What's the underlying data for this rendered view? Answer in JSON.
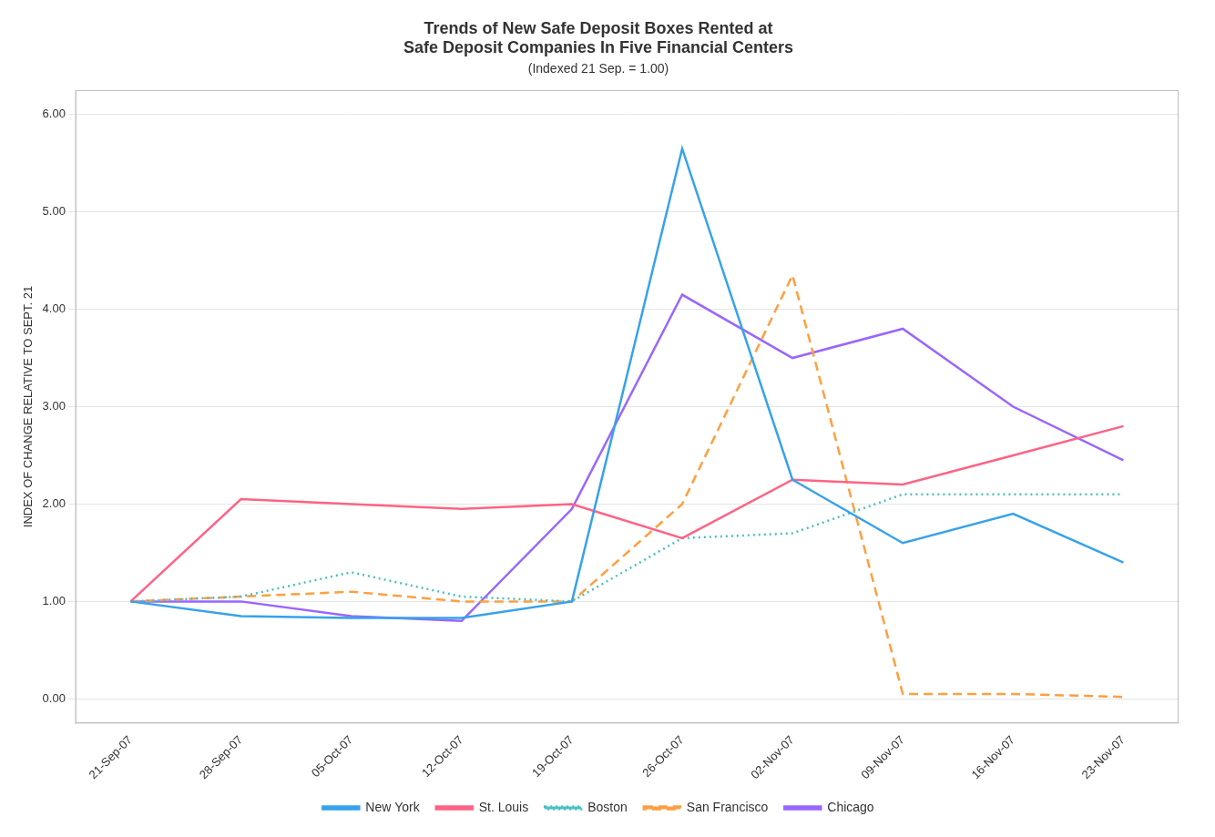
{
  "chart_data": {
    "type": "line",
    "title": [
      "Trends of New Safe Deposit Boxes Rented at",
      "Safe Deposit Companies In Five Financial Centers"
    ],
    "subtitle": "(Indexed 21 Sep. = 1.00)",
    "ylabel": "INDEX OF CHANGE RELATIVE TO SEPT. 21",
    "categories": [
      "21-Sep-07",
      "28-Sep-07",
      "05-Oct-07",
      "12-Oct-07",
      "19-Oct-07",
      "26-Oct-07",
      "02-Nov-07",
      "09-Nov-07",
      "16-Nov-07",
      "23-Nov-07"
    ],
    "series": [
      {
        "name": "New York",
        "line_style": "solid",
        "values": [
          1.0,
          0.85,
          0.83,
          0.83,
          1.0,
          5.65,
          2.25,
          1.6,
          1.9,
          1.4
        ]
      },
      {
        "name": "St. Louis",
        "line_style": "solid",
        "values": [
          1.0,
          2.05,
          2.0,
          1.95,
          2.0,
          1.65,
          2.25,
          2.2,
          2.5,
          2.8
        ]
      },
      {
        "name": "Boston",
        "line_style": "dotted",
        "values": [
          1.0,
          1.05,
          1.3,
          1.05,
          1.0,
          1.65,
          1.7,
          2.1,
          2.1,
          2.1
        ]
      },
      {
        "name": "San Francisco",
        "line_style": "dashed",
        "values": [
          1.0,
          1.05,
          1.1,
          1.0,
          1.0,
          2.0,
          4.35,
          0.05,
          0.05,
          0.02
        ]
      },
      {
        "name": "Chicago",
        "line_style": "solid",
        "values": [
          1.0,
          1.0,
          0.85,
          0.8,
          1.95,
          4.15,
          3.5,
          3.8,
          3.0,
          2.45
        ]
      }
    ],
    "ylim": [
      -0.25,
      6.25
    ],
    "yticks": [
      {
        "value": 0,
        "label": "0.00"
      },
      {
        "value": 1,
        "label": "1.00"
      },
      {
        "value": 2,
        "label": "2.00"
      },
      {
        "value": 3,
        "label": "3.00"
      },
      {
        "value": 4,
        "label": "4.00"
      },
      {
        "value": 5,
        "label": "5.00"
      },
      {
        "value": 6,
        "label": "6.00"
      }
    ],
    "grid": true,
    "legend": "bottom"
  }
}
